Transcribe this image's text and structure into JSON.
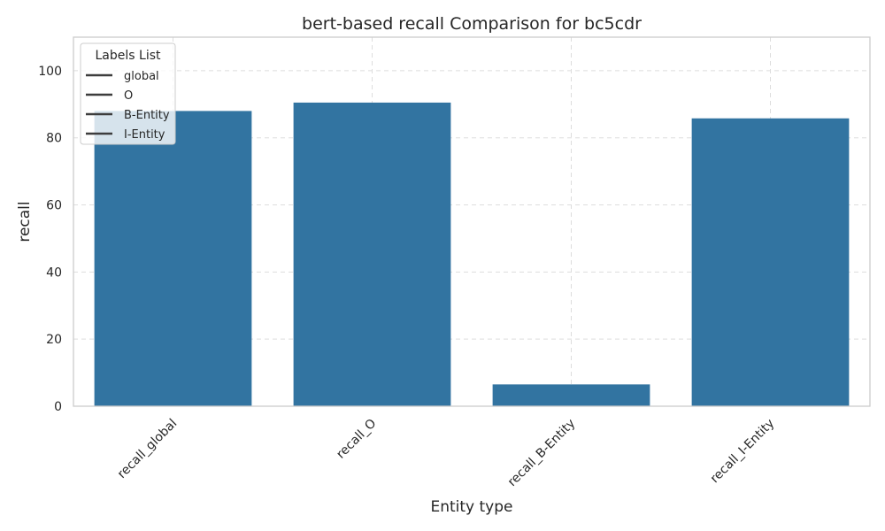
{
  "chart_data": {
    "type": "bar",
    "title": "bert-based  recall Comparison for bc5cdr",
    "xlabel": "Entity type",
    "ylabel": "recall",
    "categories": [
      "recall_global",
      "recall_O",
      "recall_B-Entity",
      "recall_I-Entity"
    ],
    "values": [
      88.0,
      90.5,
      6.5,
      85.8
    ],
    "ylim": [
      0,
      110
    ],
    "yticks": [
      0,
      20,
      40,
      60,
      80,
      100
    ],
    "grid": true,
    "bar_color": "#3274a1",
    "legend": {
      "title": "Labels List",
      "position": "top-left",
      "entries": [
        "global",
        "O",
        "B-Entity",
        "I-Entity"
      ]
    }
  }
}
